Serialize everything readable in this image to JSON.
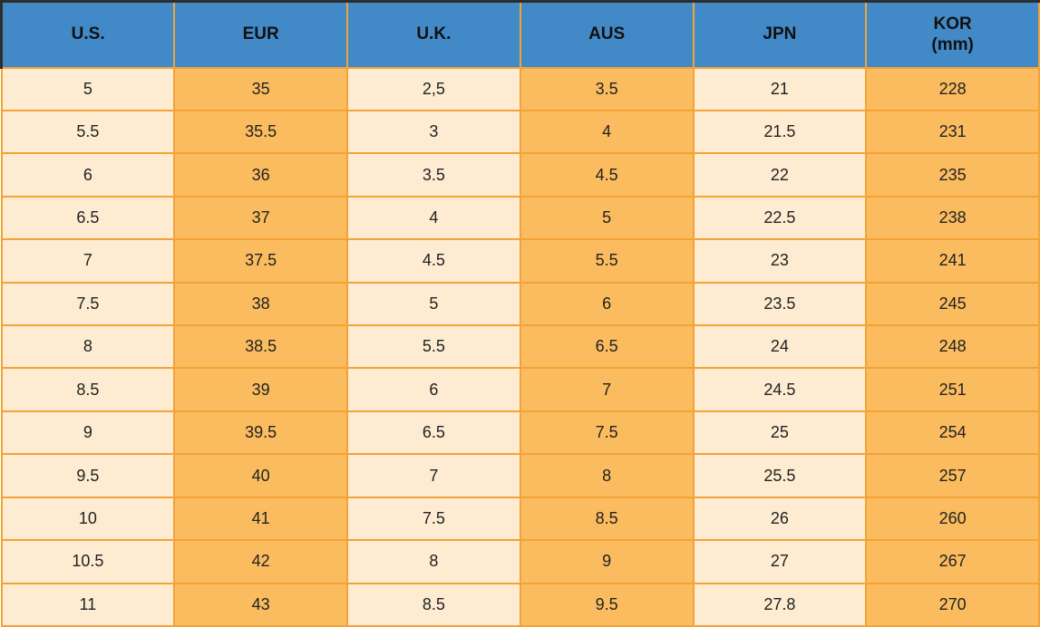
{
  "colors": {
    "header_bg": "#4289c7",
    "cell_cream": "#fdecd1",
    "cell_orange": "#fbbc5f",
    "grid_border": "#f2a338",
    "outer_dark_border": "#2e2e2e",
    "header_text": "#111111",
    "cell_text": "#222222"
  },
  "table": {
    "headers": [
      {
        "line1": "U.S."
      },
      {
        "line1": "EUR"
      },
      {
        "line1": "U.K."
      },
      {
        "line1": "AUS"
      },
      {
        "line1": "JPN"
      },
      {
        "line1": "KOR",
        "line2": "(mm)"
      }
    ],
    "rows": [
      [
        "5",
        "35",
        "2,5",
        "3.5",
        "21",
        "228"
      ],
      [
        "5.5",
        "35.5",
        "3",
        "4",
        "21.5",
        "231"
      ],
      [
        "6",
        "36",
        "3.5",
        "4.5",
        "22",
        "235"
      ],
      [
        "6.5",
        "37",
        "4",
        "5",
        "22.5",
        "238"
      ],
      [
        "7",
        "37.5",
        "4.5",
        "5.5",
        "23",
        "241"
      ],
      [
        "7.5",
        "38",
        "5",
        "6",
        "23.5",
        "245"
      ],
      [
        "8",
        "38.5",
        "5.5",
        "6.5",
        "24",
        "248"
      ],
      [
        "8.5",
        "39",
        "6",
        "7",
        "24.5",
        "251"
      ],
      [
        "9",
        "39.5",
        "6.5",
        "7.5",
        "25",
        "254"
      ],
      [
        "9.5",
        "40",
        "7",
        "8",
        "25.5",
        "257"
      ],
      [
        "10",
        "41",
        "7.5",
        "8.5",
        "26",
        "260"
      ],
      [
        "10.5",
        "42",
        "8",
        "9",
        "27",
        "267"
      ],
      [
        "11",
        "43",
        "8.5",
        "9.5",
        "27.8",
        "270"
      ]
    ]
  },
  "chart_data": {
    "type": "table",
    "columns": [
      "U.S.",
      "EUR",
      "U.K.",
      "AUS",
      "JPN",
      "KOR (mm)"
    ],
    "rows": [
      [
        "5",
        "35",
        "2,5",
        "3.5",
        "21",
        "228"
      ],
      [
        "5.5",
        "35.5",
        "3",
        "4",
        "21.5",
        "231"
      ],
      [
        "6",
        "36",
        "3.5",
        "4.5",
        "22",
        "235"
      ],
      [
        "6.5",
        "37",
        "4",
        "5",
        "22.5",
        "238"
      ],
      [
        "7",
        "37.5",
        "4.5",
        "5.5",
        "23",
        "241"
      ],
      [
        "7.5",
        "38",
        "5",
        "6",
        "23.5",
        "245"
      ],
      [
        "8",
        "38.5",
        "5.5",
        "6.5",
        "24",
        "248"
      ],
      [
        "8.5",
        "39",
        "6",
        "7",
        "24.5",
        "251"
      ],
      [
        "9",
        "39.5",
        "6.5",
        "7.5",
        "25",
        "254"
      ],
      [
        "9.5",
        "40",
        "7",
        "8",
        "25.5",
        "257"
      ],
      [
        "10",
        "41",
        "7.5",
        "8.5",
        "26",
        "260"
      ],
      [
        "10.5",
        "42",
        "8",
        "9",
        "27",
        "267"
      ],
      [
        "11",
        "43",
        "8.5",
        "9.5",
        "27.8",
        "270"
      ]
    ],
    "layout_hints": {
      "striping": "column-based",
      "cream_columns": [
        0,
        2,
        4
      ],
      "orange_columns": [
        1,
        3,
        5
      ],
      "header_style": "blue-bold"
    }
  }
}
